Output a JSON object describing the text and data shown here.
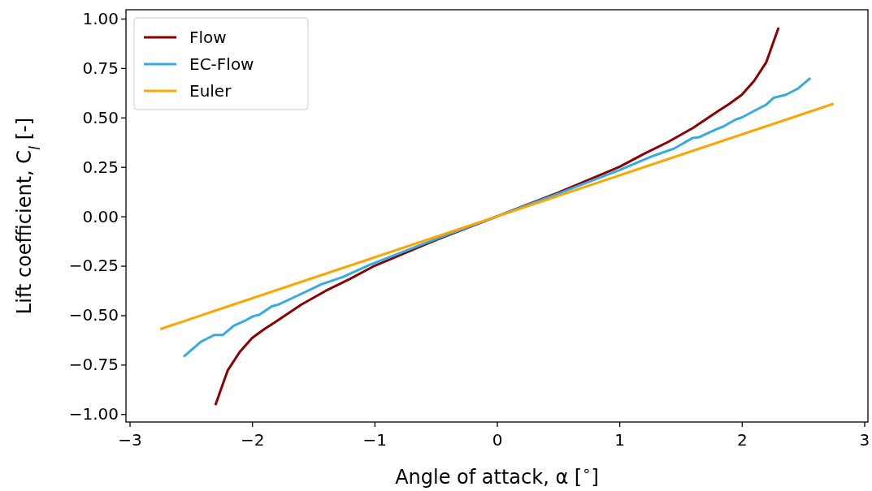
{
  "chart_data": {
    "type": "line",
    "xlabel": "Angle of attack, α [$^{∘}$]",
    "ylabel": "Lift coefficient, C$_{l}$ [-]",
    "xlim": [
      -3.03,
      3.03
    ],
    "ylim": [
      -1.04,
      1.045
    ],
    "xticks": [
      {
        "value": -3,
        "label": "−3"
      },
      {
        "value": -2,
        "label": "−2"
      },
      {
        "value": -1,
        "label": "−1"
      },
      0,
      1,
      2,
      3
    ],
    "yticks": [
      {
        "value": -1,
        "label": "−1.00"
      },
      {
        "value": -0.75,
        "label": "−0.75"
      },
      {
        "value": -0.5,
        "label": "−0.50"
      },
      {
        "value": -0.25,
        "label": "−0.25"
      },
      {
        "value": 0,
        "label": "0.00"
      },
      {
        "value": 0.25,
        "label": "0.25"
      },
      {
        "value": 0.5,
        "label": "0.50"
      },
      {
        "value": 0.75,
        "label": "0.75"
      },
      {
        "value": 1,
        "label": "1.00"
      }
    ],
    "grid": false,
    "legend": "top left",
    "marker": "none",
    "line_style": "solid",
    "series": [
      {
        "name": "Flow",
        "color": "#8b0000",
        "x": [
          -2.3,
          -2.2,
          -2.1,
          -2.0,
          -1.9,
          -1.8,
          -1.6,
          -1.4,
          -1.2,
          -1.0,
          -0.5,
          0,
          0.5,
          1.0,
          1.2,
          1.4,
          1.6,
          1.8,
          1.9,
          2.0,
          2.1,
          2.2,
          2.3
        ],
        "values": [
          -0.955,
          -0.78,
          -0.685,
          -0.615,
          -0.57,
          -0.53,
          -0.447,
          -0.377,
          -0.316,
          -0.25,
          -0.12,
          0,
          0.12,
          0.25,
          0.316,
          0.377,
          0.447,
          0.53,
          0.57,
          0.615,
          0.685,
          0.78,
          0.955
        ]
      },
      {
        "name": "EC-Flow",
        "color": "#35abe2",
        "x": [
          -2.56,
          -2.42,
          -2.31,
          -2.24,
          -2.15,
          -2.05,
          -1.99,
          -1.94,
          -1.84,
          -1.79,
          -1.66,
          -1.49,
          -1.44,
          -1.26,
          -1.04,
          -0.5,
          0,
          0.5,
          1.0,
          1.25,
          1.45,
          1.6,
          1.65,
          1.79,
          1.85,
          1.95,
          2.0,
          2.09,
          2.2,
          2.26,
          2.36,
          2.46,
          2.56
        ],
        "values": [
          -0.71,
          -0.635,
          -0.6,
          -0.6,
          -0.553,
          -0.525,
          -0.505,
          -0.497,
          -0.455,
          -0.447,
          -0.41,
          -0.36,
          -0.345,
          -0.307,
          -0.245,
          -0.115,
          0,
          0.115,
          0.234,
          0.3,
          0.344,
          0.397,
          0.4,
          0.44,
          0.455,
          0.49,
          0.5,
          0.53,
          0.565,
          0.6,
          0.615,
          0.647,
          0.7
        ]
      },
      {
        "name": "Euler",
        "color": "#ffa500",
        "x": [
          -2.75,
          0,
          2.75
        ],
        "values": [
          -0.57,
          0,
          0.57
        ]
      }
    ]
  }
}
